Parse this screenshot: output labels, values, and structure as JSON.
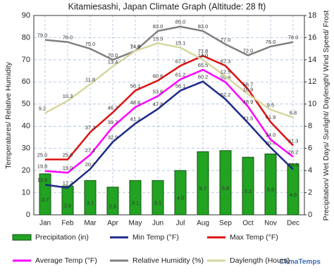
{
  "chart_data": {
    "type": "combo",
    "title": "Kitamiesashi, Japan Climate Graph (Altitude: 28 ft)",
    "y_label": "Temperatures/ Relative Humidity",
    "y2_label": "Precipitation/ Wet Days/ Sunlight/ Daylength/ Wind Speed/ Frost",
    "watermark": "ClimaTemps",
    "categories": [
      "Jan",
      "Feb",
      "Mar",
      "Apr",
      "May",
      "Jun",
      "Jul",
      "Aug",
      "Sep",
      "Oct",
      "Nov",
      "Dec"
    ],
    "ylim": [
      0,
      90
    ],
    "yticks": [
      0,
      10,
      20,
      30,
      40,
      50,
      60,
      70,
      80,
      90
    ],
    "y2lim": [
      0,
      18
    ],
    "y2ticks": [
      0,
      2,
      4,
      6,
      8,
      10,
      12,
      14,
      16,
      18
    ],
    "grid": true,
    "legend": "bottom",
    "series": [
      {
        "name": "Precipitation (in)",
        "type": "bar",
        "axis": "y2",
        "color": "#22a322",
        "values": [
          3.7,
          2.6,
          3.1,
          2.5,
          3.1,
          3.1,
          4.0,
          5.7,
          5.8,
          5.2,
          5.5,
          4.6
        ],
        "value_labels": [
          "3.7",
          "2.6",
          "3.1",
          "2.5",
          "3.1",
          "3.1",
          "4.0",
          "5.7",
          "5.8",
          "5.2",
          "5.5",
          "4.6"
        ]
      },
      {
        "name": "Min Temp (°F)",
        "type": "line",
        "color": "#1f2a88",
        "values": [
          13.6,
          12.2,
          20.7,
          32.9,
          41.2,
          47.8,
          56.1,
          60.2,
          52.2,
          41.5,
          30.4,
          20.5
        ],
        "value_labels": [
          "13.6",
          "12.2",
          "20.7",
          "32.9",
          "41.2",
          "47.8",
          "56.1",
          "60.2",
          "52.2",
          "41.5",
          "30.4",
          "20.5"
        ]
      },
      {
        "name": "Max Temp (°F)",
        "type": "line",
        "color": "#dd1111",
        "values": [
          25.0,
          25.0,
          37.3,
          46.2,
          56.1,
          60.6,
          67.3,
          71.8,
          67.3,
          56.7,
          41.9,
          31.3
        ],
        "value_labels": [
          "25.0",
          "25.0",
          "37.3",
          "46.2",
          "56.1",
          "60.6",
          "67.3",
          "71.8",
          "67.3",
          "56.7",
          "41.9",
          "31.3"
        ]
      },
      {
        "name": "Average Temp (°F)",
        "type": "line",
        "color": "#ff00ff",
        "values": [
          19.8,
          19.0,
          27.1,
          39.7,
          48.6,
          53.6,
          61.2,
          65.5,
          59.9,
          48.9,
          34.0,
          26.2
        ],
        "value_labels": [
          "19.8",
          "19.0",
          "27.1",
          "39.7",
          "48.6",
          "53.6",
          "61.2",
          "65.5",
          "59.9",
          "48.9",
          "34.0",
          "26.2"
        ]
      },
      {
        "name": "Relative Humidity (%)",
        "type": "line",
        "color": "#808080",
        "values": [
          79.0,
          78.0,
          75.0,
          70.0,
          74.0,
          83.0,
          85.0,
          83.0,
          77.0,
          72.0,
          76.0,
          78.0
        ],
        "value_labels": [
          "79.0",
          "78.0",
          "75.0",
          "70.0",
          "74.0",
          "83.0",
          "85.0",
          "83.0",
          "77.0",
          "72.0",
          "76.0",
          "78.0"
        ]
      },
      {
        "name": "Daylength (Hours)",
        "type": "line",
        "axis": "y2",
        "color": "#d6d6a0",
        "values": [
          9.2,
          10.3,
          11.8,
          13.4,
          14.8,
          15.5,
          15.1,
          14.0,
          12.5,
          10.9,
          9.5,
          8.8
        ],
        "value_labels": [
          "9.2",
          "10.3",
          "11.8",
          "13.4",
          "14.8",
          "15.5",
          "15.1",
          "14.0",
          "12.5",
          "10.9",
          "9.5",
          "8.8"
        ]
      }
    ]
  }
}
